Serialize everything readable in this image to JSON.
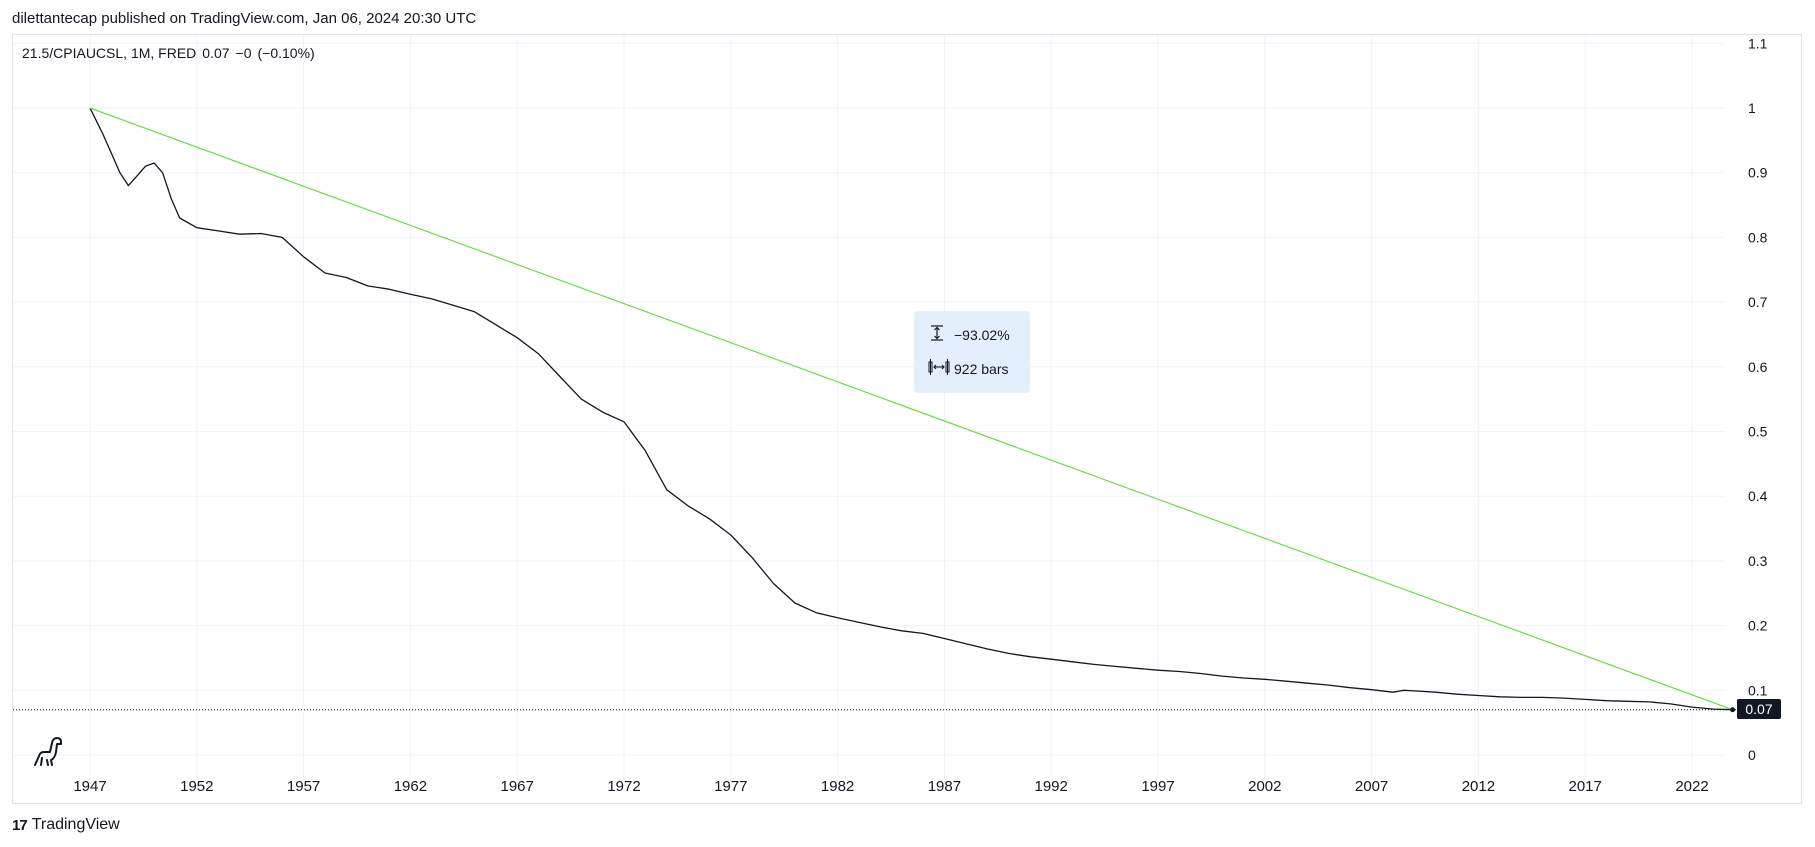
{
  "header": {
    "publisher_line": "dilettantecap published on TradingView.com, Jan 06, 2024 20:30 UTC"
  },
  "legend": {
    "symbol": "21.5/CPIAUCSL, 1M, FRED",
    "last": "0.07",
    "change": "−0",
    "change_pct": "(−0.10%)"
  },
  "measure": {
    "percent": "−93.02%",
    "bars": "922 bars",
    "height_icon": "vertical-range-icon",
    "width_icon": "horizontal-range-icon"
  },
  "price_tag": {
    "value": "0.07"
  },
  "footer": {
    "brand": "TradingView",
    "logo_text": "17"
  },
  "chart_data": {
    "type": "line",
    "title": "",
    "xlabel": "",
    "ylabel": "",
    "xlim": [
      1945.6,
      2026.0
    ],
    "ylim": [
      0,
      1.1
    ],
    "x_ticks": [
      "1947",
      "1952",
      "1957",
      "1962",
      "1967",
      "1972",
      "1977",
      "1982",
      "1987",
      "1992",
      "1997",
      "2002",
      "2007",
      "2012",
      "2017",
      "2022"
    ],
    "y_ticks": [
      "0",
      "0.1",
      "0.2",
      "0.3",
      "0.4",
      "0.5",
      "0.6",
      "0.7",
      "0.8",
      "0.9",
      "1",
      "1.1"
    ],
    "grid": true,
    "series": [
      {
        "color": "#131722",
        "x": [
          1947.0,
          1947.3,
          1947.6,
          1948.0,
          1948.4,
          1948.8,
          1949.2,
          1949.6,
          1950.0,
          1950.4,
          1950.8,
          1951.2,
          1952.0,
          1953.0,
          1954.0,
          1955.0,
          1956.0,
          1957.0,
          1958.0,
          1959.0,
          1960.0,
          1961.0,
          1962.0,
          1963.0,
          1964.0,
          1965.0,
          1966.0,
          1967.0,
          1968.0,
          1969.0,
          1970.0,
          1971.0,
          1972.0,
          1973.0,
          1974.0,
          1975.0,
          1976.0,
          1977.0,
          1978.0,
          1979.0,
          1980.0,
          1981.0,
          1982.0,
          1983.0,
          1984.0,
          1985.0,
          1986.0,
          1987.0,
          1988.0,
          1989.0,
          1990.0,
          1991.0,
          1992.0,
          1993.0,
          1994.0,
          1995.0,
          1996.0,
          1997.0,
          1998.0,
          1999.0,
          2000.0,
          2001.0,
          2002.0,
          2003.0,
          2004.0,
          2005.0,
          2006.0,
          2007.0,
          2008.0,
          2008.5,
          2009.0,
          2010.0,
          2011.0,
          2012.0,
          2013.0,
          2014.0,
          2015.0,
          2016.0,
          2017.0,
          2018.0,
          2019.0,
          2020.0,
          2021.0,
          2022.0,
          2023.0,
          2023.9
        ],
        "values": [
          1.0,
          0.98,
          0.96,
          0.93,
          0.9,
          0.88,
          0.895,
          0.91,
          0.915,
          0.9,
          0.86,
          0.83,
          0.815,
          0.81,
          0.805,
          0.806,
          0.8,
          0.77,
          0.745,
          0.738,
          0.725,
          0.72,
          0.712,
          0.705,
          0.695,
          0.685,
          0.665,
          0.645,
          0.62,
          0.585,
          0.55,
          0.53,
          0.515,
          0.47,
          0.41,
          0.385,
          0.365,
          0.34,
          0.305,
          0.265,
          0.235,
          0.22,
          0.212,
          0.205,
          0.198,
          0.192,
          0.188,
          0.18,
          0.172,
          0.164,
          0.157,
          0.152,
          0.148,
          0.144,
          0.14,
          0.137,
          0.134,
          0.131,
          0.129,
          0.126,
          0.122,
          0.119,
          0.117,
          0.114,
          0.111,
          0.108,
          0.104,
          0.101,
          0.097,
          0.1,
          0.099,
          0.097,
          0.094,
          0.092,
          0.09,
          0.089,
          0.089,
          0.088,
          0.086,
          0.084,
          0.083,
          0.082,
          0.079,
          0.074,
          0.071,
          0.07
        ]
      },
      {
        "color": "#6ed94e",
        "x": [
          1947.0,
          2023.9
        ],
        "values": [
          1.0,
          0.07
        ]
      }
    ],
    "last_value": 0.07
  }
}
